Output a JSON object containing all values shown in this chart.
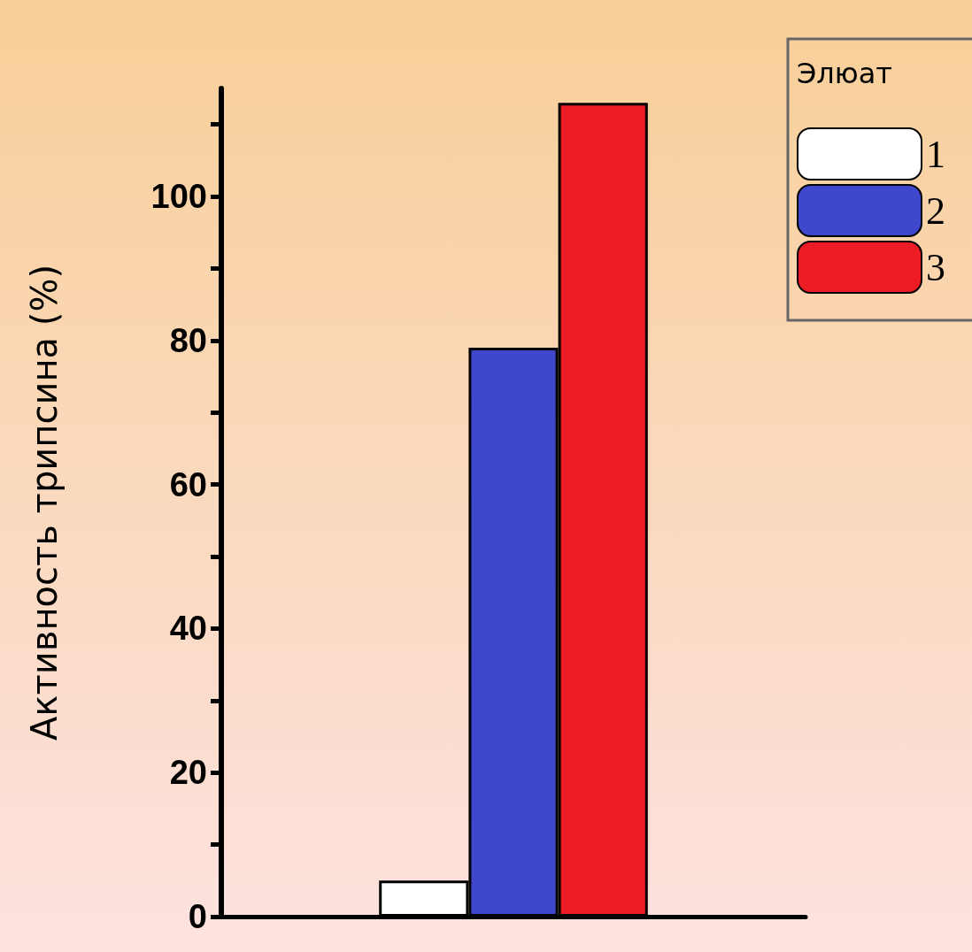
{
  "chart_data": {
    "type": "bar",
    "ylabel": "Активность трипсина (%)",
    "legend_title": "Элюат",
    "categories": [
      null
    ],
    "series": [
      {
        "name": "1",
        "color": "#ffffff",
        "values": [
          5
        ]
      },
      {
        "name": "2",
        "color": "#3f48cc",
        "values": [
          79
        ]
      },
      {
        "name": "3",
        "color": "#ed1c24",
        "values": [
          113
        ]
      }
    ],
    "ylim": [
      0,
      115
    ],
    "yticks": [
      0,
      {
        "value": 10,
        "label": null
      },
      20,
      {
        "value": 30,
        "label": null
      },
      40,
      {
        "value": 50,
        "label": null
      },
      60,
      {
        "value": 70,
        "label": null
      },
      80,
      {
        "value": 90,
        "label": null
      },
      100,
      {
        "value": 110,
        "label": null
      }
    ],
    "grid": false,
    "legend": "top right"
  }
}
